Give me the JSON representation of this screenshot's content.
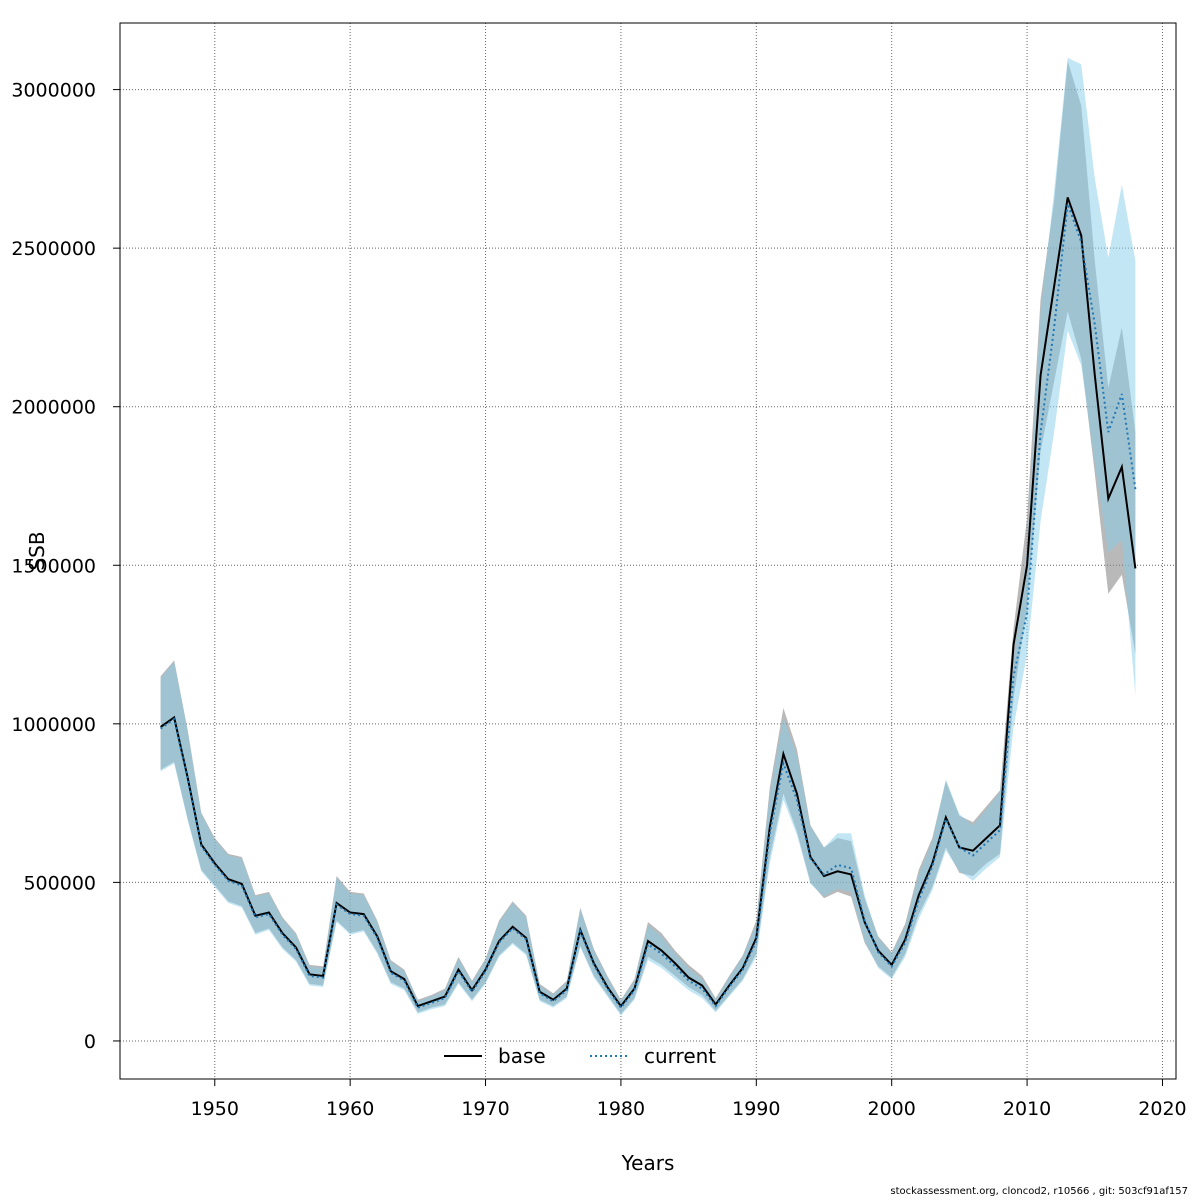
{
  "chart_data": {
    "type": "area",
    "xlabel": "Years",
    "ylabel": "SSB",
    "xlim": [
      1943,
      2021
    ],
    "ylim": [
      -120000,
      3210000
    ],
    "x_ticks": [
      1950,
      1960,
      1970,
      1980,
      1990,
      2000,
      2010,
      2020
    ],
    "y_ticks": [
      0,
      500000,
      1000000,
      1500000,
      2000000,
      2500000,
      3000000
    ],
    "grid": true,
    "legend_position": "bottom-center",
    "x": [
      1946,
      1947,
      1948,
      1949,
      1950,
      1951,
      1952,
      1953,
      1954,
      1955,
      1956,
      1957,
      1958,
      1959,
      1960,
      1961,
      1962,
      1963,
      1964,
      1965,
      1966,
      1967,
      1968,
      1969,
      1970,
      1971,
      1972,
      1973,
      1974,
      1975,
      1976,
      1977,
      1978,
      1979,
      1980,
      1981,
      1982,
      1983,
      1984,
      1985,
      1986,
      1987,
      1988,
      1989,
      1990,
      1991,
      1992,
      1993,
      1994,
      1995,
      1996,
      1997,
      1998,
      1999,
      2000,
      2001,
      2002,
      2003,
      2004,
      2005,
      2006,
      2007,
      2008,
      2009,
      2010,
      2011,
      2012,
      2013,
      2014,
      2015,
      2016,
      2017,
      2018
    ],
    "series": [
      {
        "name": "base",
        "color": "#000000",
        "band_color": "#7f7f7f",
        "style": "solid",
        "values": [
          990000,
          1020000,
          830000,
          620000,
          560000,
          510000,
          495000,
          395000,
          405000,
          340000,
          295000,
          210000,
          205000,
          435000,
          405000,
          400000,
          330000,
          220000,
          195000,
          110000,
          125000,
          140000,
          225000,
          160000,
          225000,
          315000,
          360000,
          325000,
          155000,
          130000,
          165000,
          350000,
          245000,
          170000,
          110000,
          165000,
          315000,
          285000,
          245000,
          200000,
          175000,
          115000,
          175000,
          230000,
          325000,
          675000,
          905000,
          780000,
          580000,
          520000,
          535000,
          525000,
          375000,
          285000,
          240000,
          320000,
          460000,
          560000,
          705000,
          610000,
          600000,
          640000,
          680000,
          1250000,
          1500000,
          2100000,
          2380000,
          2660000,
          2540000,
          2100000,
          1710000,
          1810000,
          1490000
        ],
        "lower": [
          855000,
          880000,
          700000,
          540000,
          490000,
          440000,
          425000,
          340000,
          355000,
          295000,
          255000,
          180000,
          175000,
          380000,
          340000,
          350000,
          280000,
          185000,
          165000,
          90000,
          105000,
          115000,
          185000,
          130000,
          185000,
          270000,
          310000,
          275000,
          130000,
          110000,
          140000,
          300000,
          205000,
          145000,
          85000,
          135000,
          265000,
          240000,
          205000,
          170000,
          145000,
          95000,
          145000,
          195000,
          275000,
          580000,
          780000,
          660000,
          500000,
          450000,
          470000,
          455000,
          310000,
          235000,
          200000,
          275000,
          400000,
          485000,
          610000,
          530000,
          520000,
          560000,
          590000,
          1080000,
          1370000,
          1860000,
          2080000,
          2300000,
          2150000,
          1790000,
          1410000,
          1470000,
          1220000
        ],
        "upper": [
          1150000,
          1200000,
          980000,
          720000,
          640000,
          590000,
          580000,
          460000,
          470000,
          390000,
          340000,
          240000,
          235000,
          520000,
          470000,
          465000,
          380000,
          255000,
          225000,
          130000,
          145000,
          165000,
          265000,
          190000,
          260000,
          380000,
          440000,
          395000,
          180000,
          150000,
          190000,
          420000,
          290000,
          205000,
          130000,
          195000,
          375000,
          340000,
          285000,
          240000,
          205000,
          135000,
          205000,
          270000,
          380000,
          800000,
          1050000,
          920000,
          680000,
          610000,
          640000,
          630000,
          450000,
          330000,
          280000,
          370000,
          540000,
          640000,
          820000,
          710000,
          690000,
          740000,
          790000,
          1300000,
          1650000,
          2340000,
          2650000,
          3090000,
          2950000,
          2460000,
          2060000,
          2250000,
          1920000
        ]
      },
      {
        "name": "current",
        "color": "#1f77b4",
        "band_color": "#87ceeb",
        "style": "dotted",
        "values": [
          985000,
          1015000,
          825000,
          615000,
          555000,
          505000,
          490000,
          390000,
          400000,
          335000,
          290000,
          205000,
          200000,
          430000,
          400000,
          395000,
          325000,
          215000,
          190000,
          105000,
          120000,
          135000,
          220000,
          155000,
          220000,
          310000,
          355000,
          320000,
          150000,
          125000,
          160000,
          345000,
          240000,
          165000,
          105000,
          160000,
          305000,
          275000,
          235000,
          190000,
          165000,
          110000,
          170000,
          225000,
          315000,
          655000,
          875000,
          760000,
          575000,
          525000,
          555000,
          545000,
          380000,
          280000,
          235000,
          310000,
          445000,
          550000,
          700000,
          610000,
          585000,
          625000,
          665000,
          1150000,
          1350000,
          1920000,
          2250000,
          2640000,
          2520000,
          2260000,
          1920000,
          2040000,
          1740000
        ],
        "lower": [
          850000,
          875000,
          695000,
          535000,
          485000,
          435000,
          420000,
          335000,
          350000,
          290000,
          250000,
          175000,
          170000,
          375000,
          335000,
          345000,
          275000,
          180000,
          160000,
          85000,
          100000,
          110000,
          180000,
          125000,
          180000,
          265000,
          305000,
          270000,
          125000,
          105000,
          135000,
          295000,
          200000,
          140000,
          80000,
          130000,
          255000,
          230000,
          195000,
          160000,
          135000,
          90000,
          140000,
          190000,
          265000,
          560000,
          760000,
          650000,
          495000,
          455000,
          480000,
          470000,
          315000,
          230000,
          195000,
          265000,
          385000,
          475000,
          600000,
          535000,
          505000,
          545000,
          580000,
          990000,
          1220000,
          1640000,
          1920000,
          2240000,
          2130000,
          1820000,
          1540000,
          1580000,
          1090000
        ],
        "upper": [
          1145000,
          1195000,
          975000,
          715000,
          635000,
          585000,
          575000,
          455000,
          465000,
          385000,
          335000,
          235000,
          230000,
          515000,
          465000,
          460000,
          375000,
          250000,
          220000,
          125000,
          140000,
          160000,
          260000,
          185000,
          255000,
          375000,
          435000,
          390000,
          175000,
          145000,
          185000,
          415000,
          285000,
          200000,
          125000,
          190000,
          365000,
          330000,
          275000,
          230000,
          195000,
          130000,
          200000,
          265000,
          370000,
          780000,
          1020000,
          900000,
          675000,
          610000,
          655000,
          655000,
          460000,
          325000,
          275000,
          360000,
          525000,
          630000,
          825000,
          715000,
          680000,
          730000,
          785000,
          1200000,
          1550000,
          2300000,
          2680000,
          3100000,
          3080000,
          2720000,
          2470000,
          2700000,
          2460000
        ]
      }
    ]
  },
  "footer": "stockassessment.org, cloncod2, r10566 , git: 503cf91af157"
}
